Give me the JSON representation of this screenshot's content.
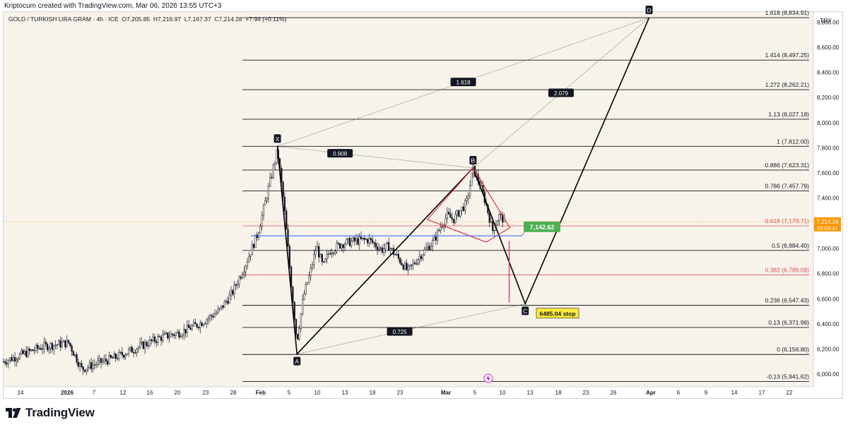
{
  "header": {
    "created_by": "Kriptocum created with TradingView.com, Mar 06, 2026 13:55 UTC+3"
  },
  "legend": {
    "symbol": "GOLD / TURKISH LIRA GRAM · 4h · ICE",
    "open": "O7,205.85",
    "high": "H7,216.97",
    "low": "L7,167.37",
    "close": "C7,214.28",
    "change": "+7.94 (+0.11%)"
  },
  "currency": "TRY",
  "brand": {
    "name": "TradingView"
  },
  "colors": {
    "background": "#f8f3ea",
    "candle": "#131722",
    "fib_line": "#131722",
    "fib_red": "#e04a5a",
    "pattern_line": "#000000",
    "triangle": "#e0304a",
    "blue_line": "#2962ff",
    "price_badge": "#ff9800",
    "target_box": "#4caf50",
    "stop_box": "#ffeb3b"
  },
  "chart_data": {
    "type": "candlestick",
    "instrument": "GOLD / TURKISH LIRA GRAM",
    "timeframe": "4h",
    "y_axis": {
      "range": [
        5900,
        8880
      ],
      "ticks": [
        6000,
        6200,
        6400,
        6600,
        6800,
        7000,
        7200,
        7400,
        7600,
        7800,
        8000,
        8200,
        8400,
        8600,
        8800
      ],
      "tick_labels": [
        "6,000.00",
        "6,200.00",
        "6,400.00",
        "6,600.00",
        "6,800.00",
        "7,000.00",
        "7,200.00",
        "7,400.00",
        "7,600.00",
        "7,800.00",
        "8,000.00",
        "8,200.00",
        "8,400.00",
        "8,600.00",
        "8,800.00"
      ]
    },
    "x_axis": {
      "labels": [
        "24",
        "2026",
        "7",
        "12",
        "16",
        "20",
        "23",
        "28",
        "Feb",
        "5",
        "10",
        "13",
        "18",
        "23",
        "Mar",
        "5",
        "10",
        "13",
        "18",
        "23",
        "26",
        "Apr",
        "6",
        "9",
        "14",
        "17",
        "22"
      ],
      "bold_labels": [
        "2026",
        "Feb",
        "Mar",
        "Apr"
      ]
    },
    "current_price": {
      "value": "7,214.28",
      "countdown": "03:04:47"
    },
    "close_path": [
      [
        "2025-12-19",
        6100
      ],
      [
        "2025-12-22",
        6160
      ],
      [
        "2025-12-25",
        6220
      ],
      [
        "2025-12-29",
        6250
      ],
      [
        "2025-12-31",
        6040
      ],
      [
        "2026-01-02",
        6080
      ],
      [
        "2026-01-05",
        6130
      ],
      [
        "2026-01-08",
        6200
      ],
      [
        "2026-01-12",
        6290
      ],
      [
        "2026-01-15",
        6330
      ],
      [
        "2026-01-18",
        6400
      ],
      [
        "2026-01-21",
        6500
      ],
      [
        "2026-01-23",
        6640
      ],
      [
        "2026-01-25",
        6860
      ],
      [
        "2026-01-27",
        7120
      ],
      [
        "2026-01-28",
        7340
      ],
      [
        "2026-01-29",
        7560
      ],
      [
        "2026-01-30",
        7780
      ],
      [
        "2026-01-31",
        7350
      ],
      [
        "2026-02-01",
        6780
      ],
      [
        "2026-02-02",
        6260
      ],
      [
        "2026-02-03",
        6620
      ],
      [
        "2026-02-04",
        6800
      ],
      [
        "2026-02-05",
        7020
      ],
      [
        "2026-02-06",
        6850
      ],
      [
        "2026-02-07",
        6980
      ],
      [
        "2026-02-09",
        7040
      ],
      [
        "2026-02-11",
        7060
      ],
      [
        "2026-02-13",
        7070
      ],
      [
        "2026-02-15",
        6990
      ],
      [
        "2026-02-16",
        7020
      ],
      [
        "2026-02-18",
        6890
      ],
      [
        "2026-02-19",
        6820
      ],
      [
        "2026-02-21",
        6950
      ],
      [
        "2026-02-23",
        7060
      ],
      [
        "2026-02-24",
        7170
      ],
      [
        "2026-02-25",
        7260
      ],
      [
        "2026-02-26",
        7230
      ],
      [
        "2026-02-27",
        7300
      ],
      [
        "2026-02-28",
        7360
      ],
      [
        "2026-03-01",
        7630
      ],
      [
        "2026-03-02",
        7520
      ],
      [
        "2026-03-03",
        7350
      ],
      [
        "2026-03-04",
        7140
      ],
      [
        "2026-03-05",
        7260
      ],
      [
        "2026-03-06",
        7214
      ]
    ],
    "fib_levels": [
      {
        "ratio": "1.618",
        "value": 8834.91,
        "label": "1.618 (8,834.91)",
        "red": false
      },
      {
        "ratio": "1.414",
        "value": 8497.25,
        "label": "1.414 (8,497.25)",
        "red": false
      },
      {
        "ratio": "1.272",
        "value": 8262.21,
        "label": "1.272 (8,262.21)",
        "red": false
      },
      {
        "ratio": "1.13",
        "value": 8027.18,
        "label": "1.13 (8,027.18)",
        "red": false
      },
      {
        "ratio": "1",
        "value": 7812.0,
        "label": "1 (7,812.00)",
        "red": false
      },
      {
        "ratio": "0.886",
        "value": 7623.31,
        "label": "0.886 (7,623.31)",
        "red": false
      },
      {
        "ratio": "0.786",
        "value": 7457.79,
        "label": "0.786 (7,457.79)",
        "red": false
      },
      {
        "ratio": "0.618",
        "value": 7179.71,
        "label": "0.618 (7,179.71)",
        "red": true
      },
      {
        "ratio": "0.5",
        "value": 6984.4,
        "label": "0.5 (6,984.40)",
        "red": false
      },
      {
        "ratio": "0.382",
        "value": 6789.09,
        "label": "0.382 (6,789.09)",
        "red": true
      },
      {
        "ratio": "0.236",
        "value": 6547.43,
        "label": "0.236 (6,547.43)",
        "red": false
      },
      {
        "ratio": "0.13",
        "value": 6371.98,
        "label": "0.13 (6,371.98)",
        "red": false
      },
      {
        "ratio": "0",
        "value": 6156.8,
        "label": "0 (6,156.80)",
        "red": false
      },
      {
        "ratio": "-0.13",
        "value": 5941.62,
        "label": "-0.13 (5,941.62)",
        "red": false
      }
    ],
    "xabcd_points": [
      {
        "label": "X",
        "date": "2026-01-30",
        "price": 7812
      },
      {
        "label": "A",
        "date": "2026-02-02",
        "price": 6160
      },
      {
        "label": "B",
        "date": "2026-03-01",
        "price": 7640
      },
      {
        "label": "C",
        "date": "2026-03-09",
        "price": 6560
      },
      {
        "label": "D",
        "date": "2026-03-28",
        "price": 8835
      }
    ],
    "ratio_labels": [
      "0.908",
      "0.725",
      "1.618",
      "2.079"
    ],
    "annotations": {
      "target": "7,142.62",
      "stop": "6485.04 stop"
    }
  }
}
